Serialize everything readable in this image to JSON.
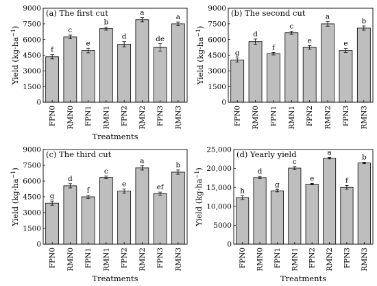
{
  "chart_data": [
    {
      "type": "bar",
      "title": "(a) The first cut",
      "xlabel": "Treatments",
      "ylabel": "Yield (kg·ha⁻¹)",
      "categories": [
        "FPN0",
        "RMN0",
        "FPN1",
        "RMN1",
        "FPN2",
        "RMN2",
        "FPN3",
        "RMN3"
      ],
      "values": [
        4350,
        6250,
        4950,
        7050,
        5550,
        7900,
        5250,
        7500
      ],
      "errors": [
        200,
        180,
        220,
        150,
        250,
        200,
        350,
        180
      ],
      "letters": [
        "f",
        "c",
        "e",
        "b",
        "d",
        "a",
        "de",
        "a"
      ],
      "ylim": [
        0,
        9000
      ],
      "yticks": [
        "0",
        "1500",
        "3000",
        "4500",
        "6000",
        "7500",
        "9000"
      ],
      "grid": false
    },
    {
      "type": "bar",
      "title": "(b) The second cut",
      "xlabel": "",
      "ylabel": "Yield (kg·ha⁻¹)",
      "categories": [
        "FPN0",
        "RMN0",
        "FPN1",
        "RMN1",
        "FPN2",
        "RMN2",
        "FPN3",
        "RMN3"
      ],
      "values": [
        4050,
        5800,
        4650,
        6650,
        5250,
        7500,
        4950,
        7100
      ],
      "errors": [
        200,
        250,
        120,
        150,
        180,
        220,
        200,
        200
      ],
      "letters": [
        "g",
        "d",
        "f",
        "c",
        "e",
        "a",
        "e",
        "b"
      ],
      "ylim": [
        0,
        9000
      ],
      "yticks": [
        "0",
        "1500",
        "3000",
        "4500",
        "6000",
        "7500",
        "9000"
      ],
      "grid": false
    },
    {
      "type": "bar",
      "title": "(c) The third cut",
      "xlabel": "Treatments",
      "ylabel": "Yield (kg·ha⁻¹)",
      "categories": [
        "FPN0",
        "RMN0",
        "FPN1",
        "RMN1",
        "FPN2",
        "RMN2",
        "FPN3",
        "RMN3"
      ],
      "values": [
        3900,
        5550,
        4500,
        6350,
        5050,
        7250,
        4800,
        6850
      ],
      "errors": [
        200,
        200,
        150,
        120,
        200,
        200,
        150,
        200
      ],
      "letters": [
        "g",
        "d",
        "f",
        "c",
        "e",
        "a",
        "ef",
        "b"
      ],
      "ylim": [
        0,
        9000
      ],
      "yticks": [
        "0",
        "1500",
        "3000",
        "4500",
        "6000",
        "7500",
        "9000"
      ],
      "grid": false
    },
    {
      "type": "bar",
      "title": "(d) Yearly yield",
      "xlabel": "Treatments",
      "ylabel": "Yield (kg·ha⁻¹)",
      "categories": [
        "FPN0",
        "RMN0",
        "FPN1",
        "RMN1",
        "FPN2",
        "RMN2",
        "FPN3",
        "RMN3"
      ],
      "values": [
        12300,
        17600,
        14100,
        20100,
        15850,
        22700,
        15000,
        21450
      ],
      "errors": [
        500,
        300,
        300,
        400,
        200,
        200,
        500,
        200
      ],
      "letters": [
        "h",
        "d",
        "g",
        "c",
        "e",
        "a",
        "f",
        "b"
      ],
      "ylim": [
        0,
        25000
      ],
      "yticks": [
        "0",
        "5000",
        "10,000",
        "15,000",
        "20,000",
        "25,000"
      ],
      "grid": false
    }
  ],
  "labels": {
    "y_prefix": "Yield (kg·ha",
    "y_exp": "−1",
    "y_suffix": ")"
  }
}
